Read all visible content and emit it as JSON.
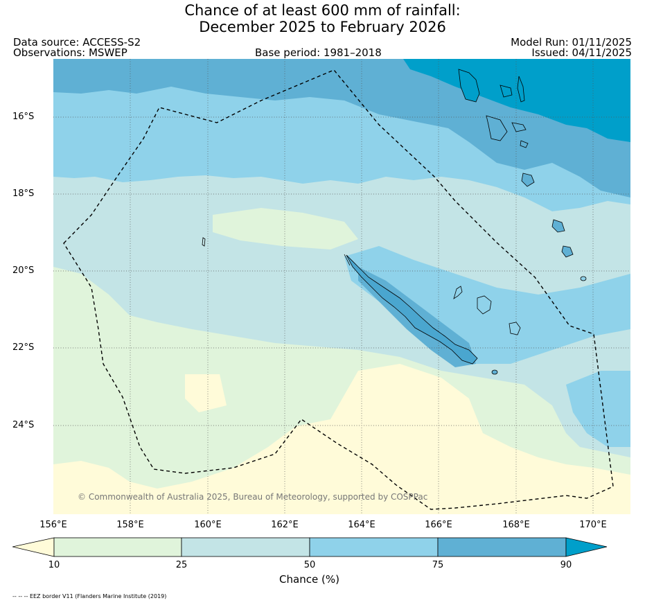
{
  "title_line1": "Chance of at least 600 mm of rainfall:",
  "title_line2": "December 2025 to February 2026",
  "data_source": "Data source: ACCESS-S2",
  "observations": "Observations: MSWEP",
  "base_period": "Base period: 1981–2018",
  "model_run": "Model Run: 01/11/2025",
  "issued": "Issued: 04/11/2025",
  "credit": "© Commonwealth of Australia 2025, Bureau of Meteorology, supported by COSPPac",
  "lat_labels": [
    "16°S",
    "18°S",
    "20°S",
    "22°S",
    "24°S"
  ],
  "lon_labels": [
    "156°E",
    "158°E",
    "160°E",
    "162°E",
    "164°E",
    "166°E",
    "168°E",
    "170°E"
  ],
  "colorbar": {
    "title": "Chance (%)",
    "ticks": [
      "10",
      "25",
      "50",
      "75",
      "90"
    ],
    "colors": [
      "#fffbd9",
      "#e0f4db",
      "#c3e4e6",
      "#8fd2ea",
      "#5fb0d4",
      "#009fca"
    ]
  },
  "footer": "-- -- -- EEZ border V11 (Flanders Marine Institute (2019)"
}
